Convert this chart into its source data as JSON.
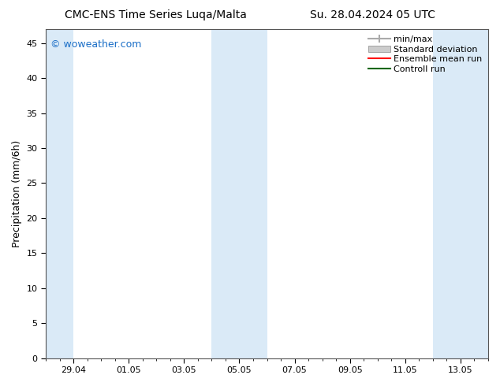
{
  "title_left": "CMC-ENS Time Series Luqa/Malta",
  "title_right": "Su. 28.04.2024 05 UTC",
  "ylabel": "Precipitation (mm/6h)",
  "watermark": "© woweather.com",
  "watermark_color": "#1a6ec7",
  "ylim": [
    0,
    47
  ],
  "yticks": [
    0,
    5,
    10,
    15,
    20,
    25,
    30,
    35,
    40,
    45
  ],
  "xtick_labels": [
    "29.04",
    "01.05",
    "03.05",
    "05.05",
    "07.05",
    "09.05",
    "11.05",
    "13.05"
  ],
  "xtick_positions": [
    1.0,
    3.0,
    5.0,
    7.0,
    9.0,
    11.0,
    13.0,
    15.0
  ],
  "x_min": 0.0,
  "x_max": 16.0,
  "shaded_bands": [
    {
      "x_start": 0.0,
      "x_end": 1.0
    },
    {
      "x_start": 6.0,
      "x_end": 8.0
    },
    {
      "x_start": 14.0,
      "x_end": 16.0
    }
  ],
  "shaded_color": "#daeaf7",
  "legend_entries": [
    {
      "label": "min/max",
      "color": "#aaaaaa"
    },
    {
      "label": "Standard deviation",
      "color": "#cccccc"
    },
    {
      "label": "Ensemble mean run",
      "color": "#ff0000"
    },
    {
      "label": "Controll run",
      "color": "#006600"
    }
  ],
  "bg_color": "#ffffff",
  "title_fontsize": 10,
  "tick_fontsize": 8,
  "ylabel_fontsize": 9,
  "watermark_fontsize": 9,
  "legend_fontsize": 8
}
